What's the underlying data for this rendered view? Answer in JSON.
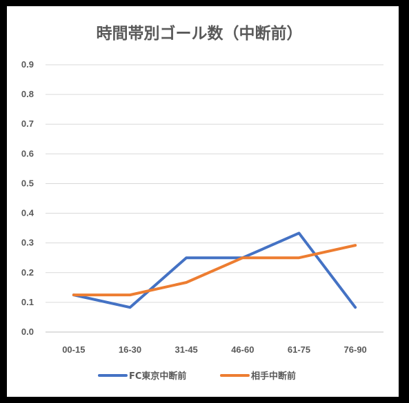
{
  "chart_data": {
    "type": "line",
    "title": "時間帯別ゴール数（中断前）",
    "xlabel": "",
    "ylabel": "",
    "categories": [
      "00-15",
      "16-30",
      "31-45",
      "46-60",
      "61-75",
      "76-90"
    ],
    "ylim": [
      0,
      0.9
    ],
    "yticks": [
      "0.0",
      "0.1",
      "0.2",
      "0.3",
      "0.4",
      "0.5",
      "0.6",
      "0.7",
      "0.8",
      "0.9"
    ],
    "grid": true,
    "legend_position": "bottom",
    "series": [
      {
        "name": "FC東京中断前",
        "color": "#4472C4",
        "values": [
          0.125,
          0.083,
          0.25,
          0.25,
          0.333,
          0.083
        ]
      },
      {
        "name": "相手中断前",
        "color": "#ED7D31",
        "values": [
          0.125,
          0.125,
          0.167,
          0.25,
          0.25,
          0.292
        ]
      }
    ]
  }
}
